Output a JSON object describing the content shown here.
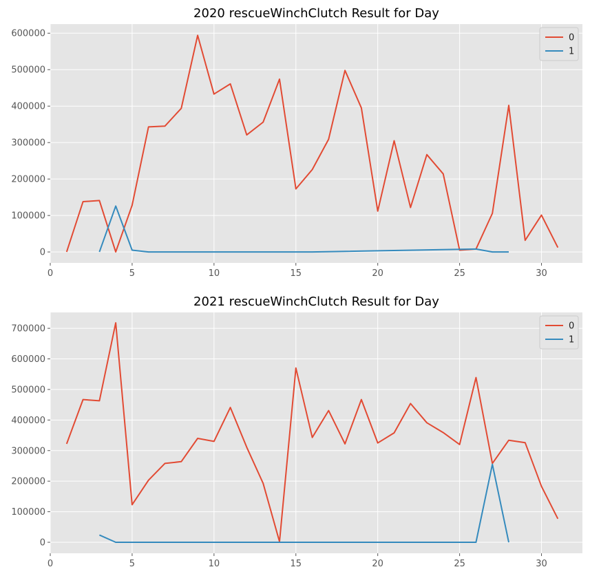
{
  "colors": {
    "series0": "#e24a33",
    "series1": "#348abd",
    "background": "#e5e5e5",
    "grid": "#ffffff"
  },
  "chart_data": [
    {
      "type": "line",
      "title": "2020 rescueWinchClutch Result for Day",
      "xlabel": "",
      "ylabel": "",
      "xlim": [
        0,
        32.5
      ],
      "ylim": [
        -30000,
        625000
      ],
      "x_ticks": [
        0,
        5,
        10,
        15,
        20,
        25,
        30
      ],
      "y_ticks": [
        0,
        100000,
        200000,
        300000,
        400000,
        500000,
        600000
      ],
      "grid": true,
      "legend_placement": "top-right",
      "series": [
        {
          "name": "0",
          "x": [
            1,
            2,
            3,
            4,
            5,
            6,
            7,
            8,
            9,
            10,
            11,
            12,
            13,
            14,
            15,
            16,
            17,
            18,
            19,
            20,
            21,
            22,
            23,
            24,
            25,
            26,
            27,
            28,
            29,
            30,
            31
          ],
          "y": [
            0,
            138000,
            141000,
            0,
            128000,
            343000,
            345000,
            394000,
            594000,
            433000,
            461000,
            321000,
            356000,
            474000,
            173000,
            226000,
            309000,
            498000,
            395000,
            112000,
            305000,
            122000,
            267000,
            214000,
            5000,
            8000,
            106000,
            402000,
            32000,
            101000,
            12000
          ]
        },
        {
          "name": "1",
          "x": [
            3,
            4,
            5,
            6,
            16,
            26,
            27,
            28
          ],
          "y": [
            0,
            126000,
            5000,
            0,
            0,
            8000,
            0,
            0
          ]
        }
      ]
    },
    {
      "type": "line",
      "title": "2021 rescueWinchClutch Result for Day",
      "xlabel": "",
      "ylabel": "",
      "xlim": [
        0,
        32.5
      ],
      "ylim": [
        -36000,
        752000
      ],
      "x_ticks": [
        0,
        5,
        10,
        15,
        20,
        25,
        30
      ],
      "y_ticks": [
        0,
        100000,
        200000,
        300000,
        400000,
        500000,
        600000,
        700000
      ],
      "grid": true,
      "legend_placement": "top-right",
      "series": [
        {
          "name": "0",
          "x": [
            1,
            2,
            3,
            4,
            5,
            6,
            7,
            8,
            9,
            10,
            11,
            12,
            13,
            14,
            15,
            16,
            17,
            18,
            19,
            20,
            21,
            22,
            23,
            24,
            25,
            26,
            27,
            28,
            29,
            30,
            31
          ],
          "y": [
            322000,
            467000,
            463000,
            718000,
            123000,
            203000,
            258000,
            264000,
            340000,
            330000,
            441000,
            311000,
            193000,
            2000,
            570000,
            343000,
            431000,
            322000,
            467000,
            325000,
            358000,
            454000,
            391000,
            359000,
            320000,
            539000,
            258000,
            334000,
            326000,
            183000,
            77000
          ]
        },
        {
          "name": "1",
          "x": [
            3,
            4,
            5,
            26,
            27,
            28
          ],
          "y": [
            24000,
            0,
            0,
            0,
            255000,
            0
          ]
        }
      ]
    }
  ]
}
